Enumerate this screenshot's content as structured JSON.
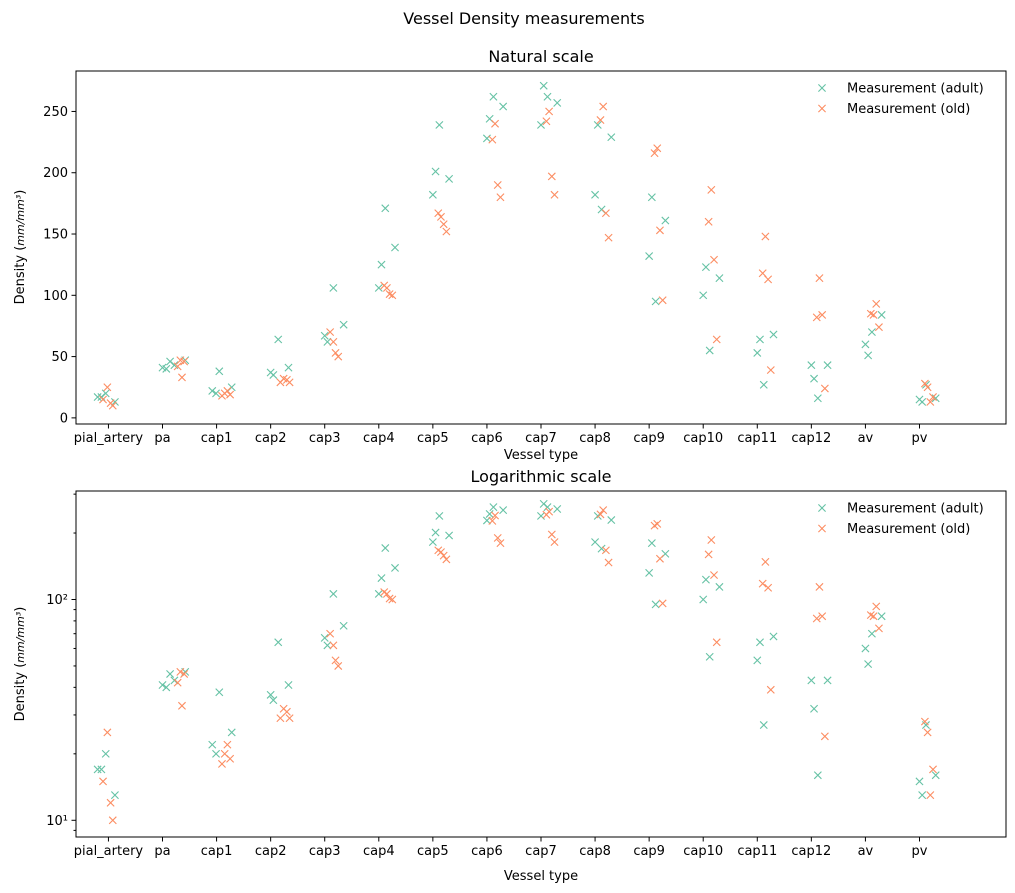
{
  "figure": {
    "suptitle": "Vessel Density measurements"
  },
  "colors": {
    "adult": "#66c2a5",
    "old": "#fc8d62"
  },
  "chart_data": [
    {
      "type": "scatter",
      "title": "Natural scale",
      "xlabel": "Vessel type",
      "ylabel": "Density",
      "ylabel_unit": "mm/mm³",
      "yscale": "linear",
      "ylim": [
        -5,
        283
      ],
      "yticks": [
        "0",
        "50",
        "100",
        "150",
        "200",
        "250"
      ],
      "marker": "x",
      "grid": false,
      "legend_position": "top-right",
      "categories": [
        "pial_artery",
        "pa",
        "cap1",
        "cap2",
        "cap3",
        "cap4",
        "cap5",
        "cap6",
        "cap7",
        "cap8",
        "cap9",
        "cap10",
        "cap11",
        "cap12",
        "av",
        "pv"
      ],
      "series": [
        {
          "name": "Measurement (adult)",
          "color": "#66c2a5",
          "points": [
            [
              "pial_artery",
              -0.2,
              17
            ],
            [
              "pial_artery",
              -0.13,
              17
            ],
            [
              "pial_artery",
              -0.05,
              20
            ],
            [
              "pial_artery",
              0.12,
              13
            ],
            [
              "pa",
              0.0,
              41
            ],
            [
              "pa",
              0.07,
              40
            ],
            [
              "pa",
              0.14,
              46
            ],
            [
              "pa",
              0.22,
              43
            ],
            [
              "pa",
              0.42,
              47
            ],
            [
              "cap1",
              -0.08,
              22
            ],
            [
              "cap1",
              -0.01,
              20
            ],
            [
              "cap1",
              0.05,
              38
            ],
            [
              "cap1",
              0.28,
              25
            ],
            [
              "cap2",
              0.0,
              37
            ],
            [
              "cap2",
              0.05,
              35
            ],
            [
              "cap2",
              0.14,
              64
            ],
            [
              "cap2",
              0.33,
              41
            ],
            [
              "cap3",
              0.0,
              67
            ],
            [
              "cap3",
              0.05,
              62
            ],
            [
              "cap3",
              0.16,
              106
            ],
            [
              "cap3",
              0.35,
              76
            ],
            [
              "cap4",
              0.0,
              106
            ],
            [
              "cap4",
              0.05,
              125
            ],
            [
              "cap4",
              0.12,
              171
            ],
            [
              "cap4",
              0.3,
              139
            ],
            [
              "cap5",
              0.0,
              182
            ],
            [
              "cap5",
              0.05,
              201
            ],
            [
              "cap5",
              0.12,
              239
            ],
            [
              "cap5",
              0.3,
              195
            ],
            [
              "cap6",
              0.0,
              228
            ],
            [
              "cap6",
              0.05,
              244
            ],
            [
              "cap6",
              0.12,
              262
            ],
            [
              "cap6",
              0.3,
              254
            ],
            [
              "cap7",
              0.0,
              239
            ],
            [
              "cap7",
              0.05,
              271
            ],
            [
              "cap7",
              0.12,
              262
            ],
            [
              "cap7",
              0.3,
              257
            ],
            [
              "cap8",
              0.0,
              182
            ],
            [
              "cap8",
              0.05,
              239
            ],
            [
              "cap8",
              0.12,
              170
            ],
            [
              "cap8",
              0.3,
              229
            ],
            [
              "cap9",
              0.0,
              132
            ],
            [
              "cap9",
              0.05,
              180
            ],
            [
              "cap9",
              0.12,
              95
            ],
            [
              "cap9",
              0.3,
              161
            ],
            [
              "cap10",
              0.0,
              100
            ],
            [
              "cap10",
              0.05,
              123
            ],
            [
              "cap10",
              0.12,
              55
            ],
            [
              "cap10",
              0.3,
              114
            ],
            [
              "cap11",
              0.0,
              53
            ],
            [
              "cap11",
              0.05,
              64
            ],
            [
              "cap11",
              0.12,
              27
            ],
            [
              "cap11",
              0.3,
              68
            ],
            [
              "cap12",
              0.0,
              43
            ],
            [
              "cap12",
              0.05,
              32
            ],
            [
              "cap12",
              0.12,
              16
            ],
            [
              "cap12",
              0.3,
              43
            ],
            [
              "av",
              0.0,
              60
            ],
            [
              "av",
              0.05,
              51
            ],
            [
              "av",
              0.12,
              70
            ],
            [
              "av",
              0.3,
              84
            ],
            [
              "pv",
              0.0,
              15
            ],
            [
              "pv",
              0.05,
              13
            ],
            [
              "pv",
              0.12,
              27
            ],
            [
              "pv",
              0.3,
              16
            ]
          ]
        },
        {
          "name": "Measurement (old)",
          "color": "#fc8d62",
          "points": [
            [
              "pial_artery",
              -0.1,
              15
            ],
            [
              "pial_artery",
              -0.02,
              25
            ],
            [
              "pial_artery",
              0.04,
              12
            ],
            [
              "pial_artery",
              0.08,
              10
            ],
            [
              "pa",
              0.28,
              42
            ],
            [
              "pa",
              0.33,
              47
            ],
            [
              "pa",
              0.36,
              33
            ],
            [
              "pa",
              0.4,
              46
            ],
            [
              "cap1",
              0.1,
              18
            ],
            [
              "cap1",
              0.15,
              20
            ],
            [
              "cap1",
              0.2,
              22
            ],
            [
              "cap1",
              0.25,
              19
            ],
            [
              "cap2",
              0.18,
              29
            ],
            [
              "cap2",
              0.24,
              32
            ],
            [
              "cap2",
              0.3,
              31
            ],
            [
              "cap2",
              0.35,
              29
            ],
            [
              "cap3",
              0.1,
              70
            ],
            [
              "cap3",
              0.16,
              62
            ],
            [
              "cap3",
              0.2,
              53
            ],
            [
              "cap3",
              0.25,
              50
            ],
            [
              "cap4",
              0.1,
              108
            ],
            [
              "cap4",
              0.15,
              106
            ],
            [
              "cap4",
              0.2,
              101
            ],
            [
              "cap4",
              0.25,
              100
            ],
            [
              "cap5",
              0.1,
              167
            ],
            [
              "cap5",
              0.15,
              164
            ],
            [
              "cap5",
              0.2,
              158
            ],
            [
              "cap5",
              0.25,
              152
            ],
            [
              "cap6",
              0.1,
              227
            ],
            [
              "cap6",
              0.15,
              240
            ],
            [
              "cap6",
              0.2,
              190
            ],
            [
              "cap6",
              0.25,
              180
            ],
            [
              "cap7",
              0.1,
              242
            ],
            [
              "cap7",
              0.15,
              250
            ],
            [
              "cap7",
              0.2,
              197
            ],
            [
              "cap7",
              0.25,
              182
            ],
            [
              "cap8",
              0.1,
              243
            ],
            [
              "cap8",
              0.15,
              254
            ],
            [
              "cap8",
              0.2,
              167
            ],
            [
              "cap8",
              0.25,
              147
            ],
            [
              "cap9",
              0.1,
              216
            ],
            [
              "cap9",
              0.15,
              220
            ],
            [
              "cap9",
              0.2,
              153
            ],
            [
              "cap9",
              0.25,
              96
            ],
            [
              "cap10",
              0.1,
              160
            ],
            [
              "cap10",
              0.15,
              186
            ],
            [
              "cap10",
              0.2,
              129
            ],
            [
              "cap10",
              0.25,
              64
            ],
            [
              "cap11",
              0.1,
              118
            ],
            [
              "cap11",
              0.15,
              148
            ],
            [
              "cap11",
              0.2,
              113
            ],
            [
              "cap11",
              0.25,
              39
            ],
            [
              "cap12",
              0.1,
              82
            ],
            [
              "cap12",
              0.15,
              114
            ],
            [
              "cap12",
              0.2,
              84
            ],
            [
              "cap12",
              0.25,
              24
            ],
            [
              "av",
              0.1,
              85
            ],
            [
              "av",
              0.15,
              84
            ],
            [
              "av",
              0.2,
              93
            ],
            [
              "av",
              0.25,
              74
            ],
            [
              "pv",
              0.1,
              28
            ],
            [
              "pv",
              0.15,
              25
            ],
            [
              "pv",
              0.2,
              13
            ],
            [
              "pv",
              0.25,
              17
            ]
          ]
        }
      ]
    },
    {
      "type": "scatter",
      "title": "Logarithmic scale",
      "xlabel": "Vessel type",
      "ylabel": "Density",
      "ylabel_unit": "mm/mm³",
      "yscale": "log",
      "ylim": [
        8.4,
        310
      ],
      "yticks": [
        "10¹",
        "10²"
      ],
      "marker": "x",
      "grid": false,
      "legend_position": "top-right",
      "categories": [
        "pial_artery",
        "pa",
        "cap1",
        "cap2",
        "cap3",
        "cap4",
        "cap5",
        "cap6",
        "cap7",
        "cap8",
        "cap9",
        "cap10",
        "cap11",
        "cap12",
        "av",
        "pv"
      ],
      "series_from": "same values as Natural scale"
    }
  ]
}
